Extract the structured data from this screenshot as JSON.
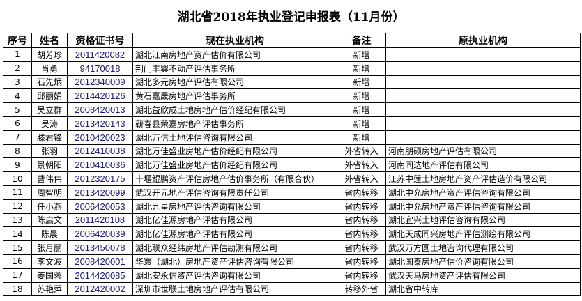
{
  "title": "湖北省2018年执业登记申报表（11月份）",
  "headers": [
    "序号",
    "姓名",
    "资格证书号",
    "现在执业机构",
    "备注",
    "原执业机构"
  ],
  "rows": [
    [
      "1",
      "胡芳珍",
      "2011420082",
      "湖北江南房地产资产估价有限公司",
      "新增",
      ""
    ],
    [
      "2",
      "肖勇",
      "94170018",
      "荆门丰巽不动产评估事务所",
      "新增",
      ""
    ],
    [
      "3",
      "石先炳",
      "2012340009",
      "湖北多元房地产评估有限公司",
      "新增",
      ""
    ],
    [
      "4",
      "邱丽娟",
      "2014420126",
      "黄石嘉晟房地产评估事务所",
      "新增",
      ""
    ],
    [
      "5",
      "吴立群",
      "2008420013",
      "湖北益欣成土地房地产估价经纪有限公司",
      "新增",
      ""
    ],
    [
      "6",
      "吴涛",
      "2013420143",
      "蕲春县荣嘉房地产评估事务所",
      "新增",
      ""
    ],
    [
      "7",
      "滕君锋",
      "2010420023",
      "湖北万信土地评估咨询有限公司",
      "新增",
      ""
    ],
    [
      "8",
      "张羽",
      "2012410038",
      "湖北万佳盛业房地产估价经纪有限公司",
      "外省转入",
      "河南朋硕房地产评估有限公司"
    ],
    [
      "9",
      "景朝阳",
      "2010410036",
      "湖北万佳盛业房地产估价经纪有限公司",
      "外省转入",
      "河南同达地产评估有限公司"
    ],
    [
      "10",
      "曹伟伟",
      "2012320175",
      "十堰鲲鹏资产评估房地产估价事务所（有限合伙）",
      "外省转入",
      "江苏中莲土地房地产资产评估造价有限公司"
    ],
    [
      "11",
      "周智明",
      "2013420099",
      "武汉开元地产评估咨询有限责任公司",
      "省内转移",
      "湖北中允房地产资产评估咨询有限公司"
    ],
    [
      "12",
      "任小燕",
      "2006420053",
      "湖北九星房地产评估咨询有限公司",
      "省内转移",
      "湖北中允房地产资产评估咨询有限公司"
    ],
    [
      "13",
      "陈启文",
      "2011420108",
      "湖北亿佳源房地产评估有限公司",
      "省内转移",
      "湖北宜兴土地评估咨询有限公司"
    ],
    [
      "14",
      "陈晨",
      "2006420039",
      "湖北亿佳源房地产评估有限公司",
      "省内转移",
      "湖北天成同兴房地产评估测绘有限公司"
    ],
    [
      "15",
      "张月丽",
      "2013450078",
      "湖北联众经纬房地产评估勘测有限公司",
      "省内转移",
      "武汉万方圆土地咨询代理有限公司"
    ],
    [
      "16",
      "李文波",
      "2008420001",
      "华寰（湖北）房地产资产评估咨询有限公司",
      "省内转移",
      "湖北国泰房地产估价咨询有限公司"
    ],
    [
      "17",
      "姜国蓉",
      "2014420085",
      "湖北安永信资产评估咨询有限公司",
      "省内转移",
      "武汉天马房地资产评估有限公司"
    ],
    [
      "18",
      "苏艳萍",
      "2012420002",
      "深圳市世联土地房地产评估有限公司",
      "转移外省",
      "湖北省中转库"
    ]
  ]
}
